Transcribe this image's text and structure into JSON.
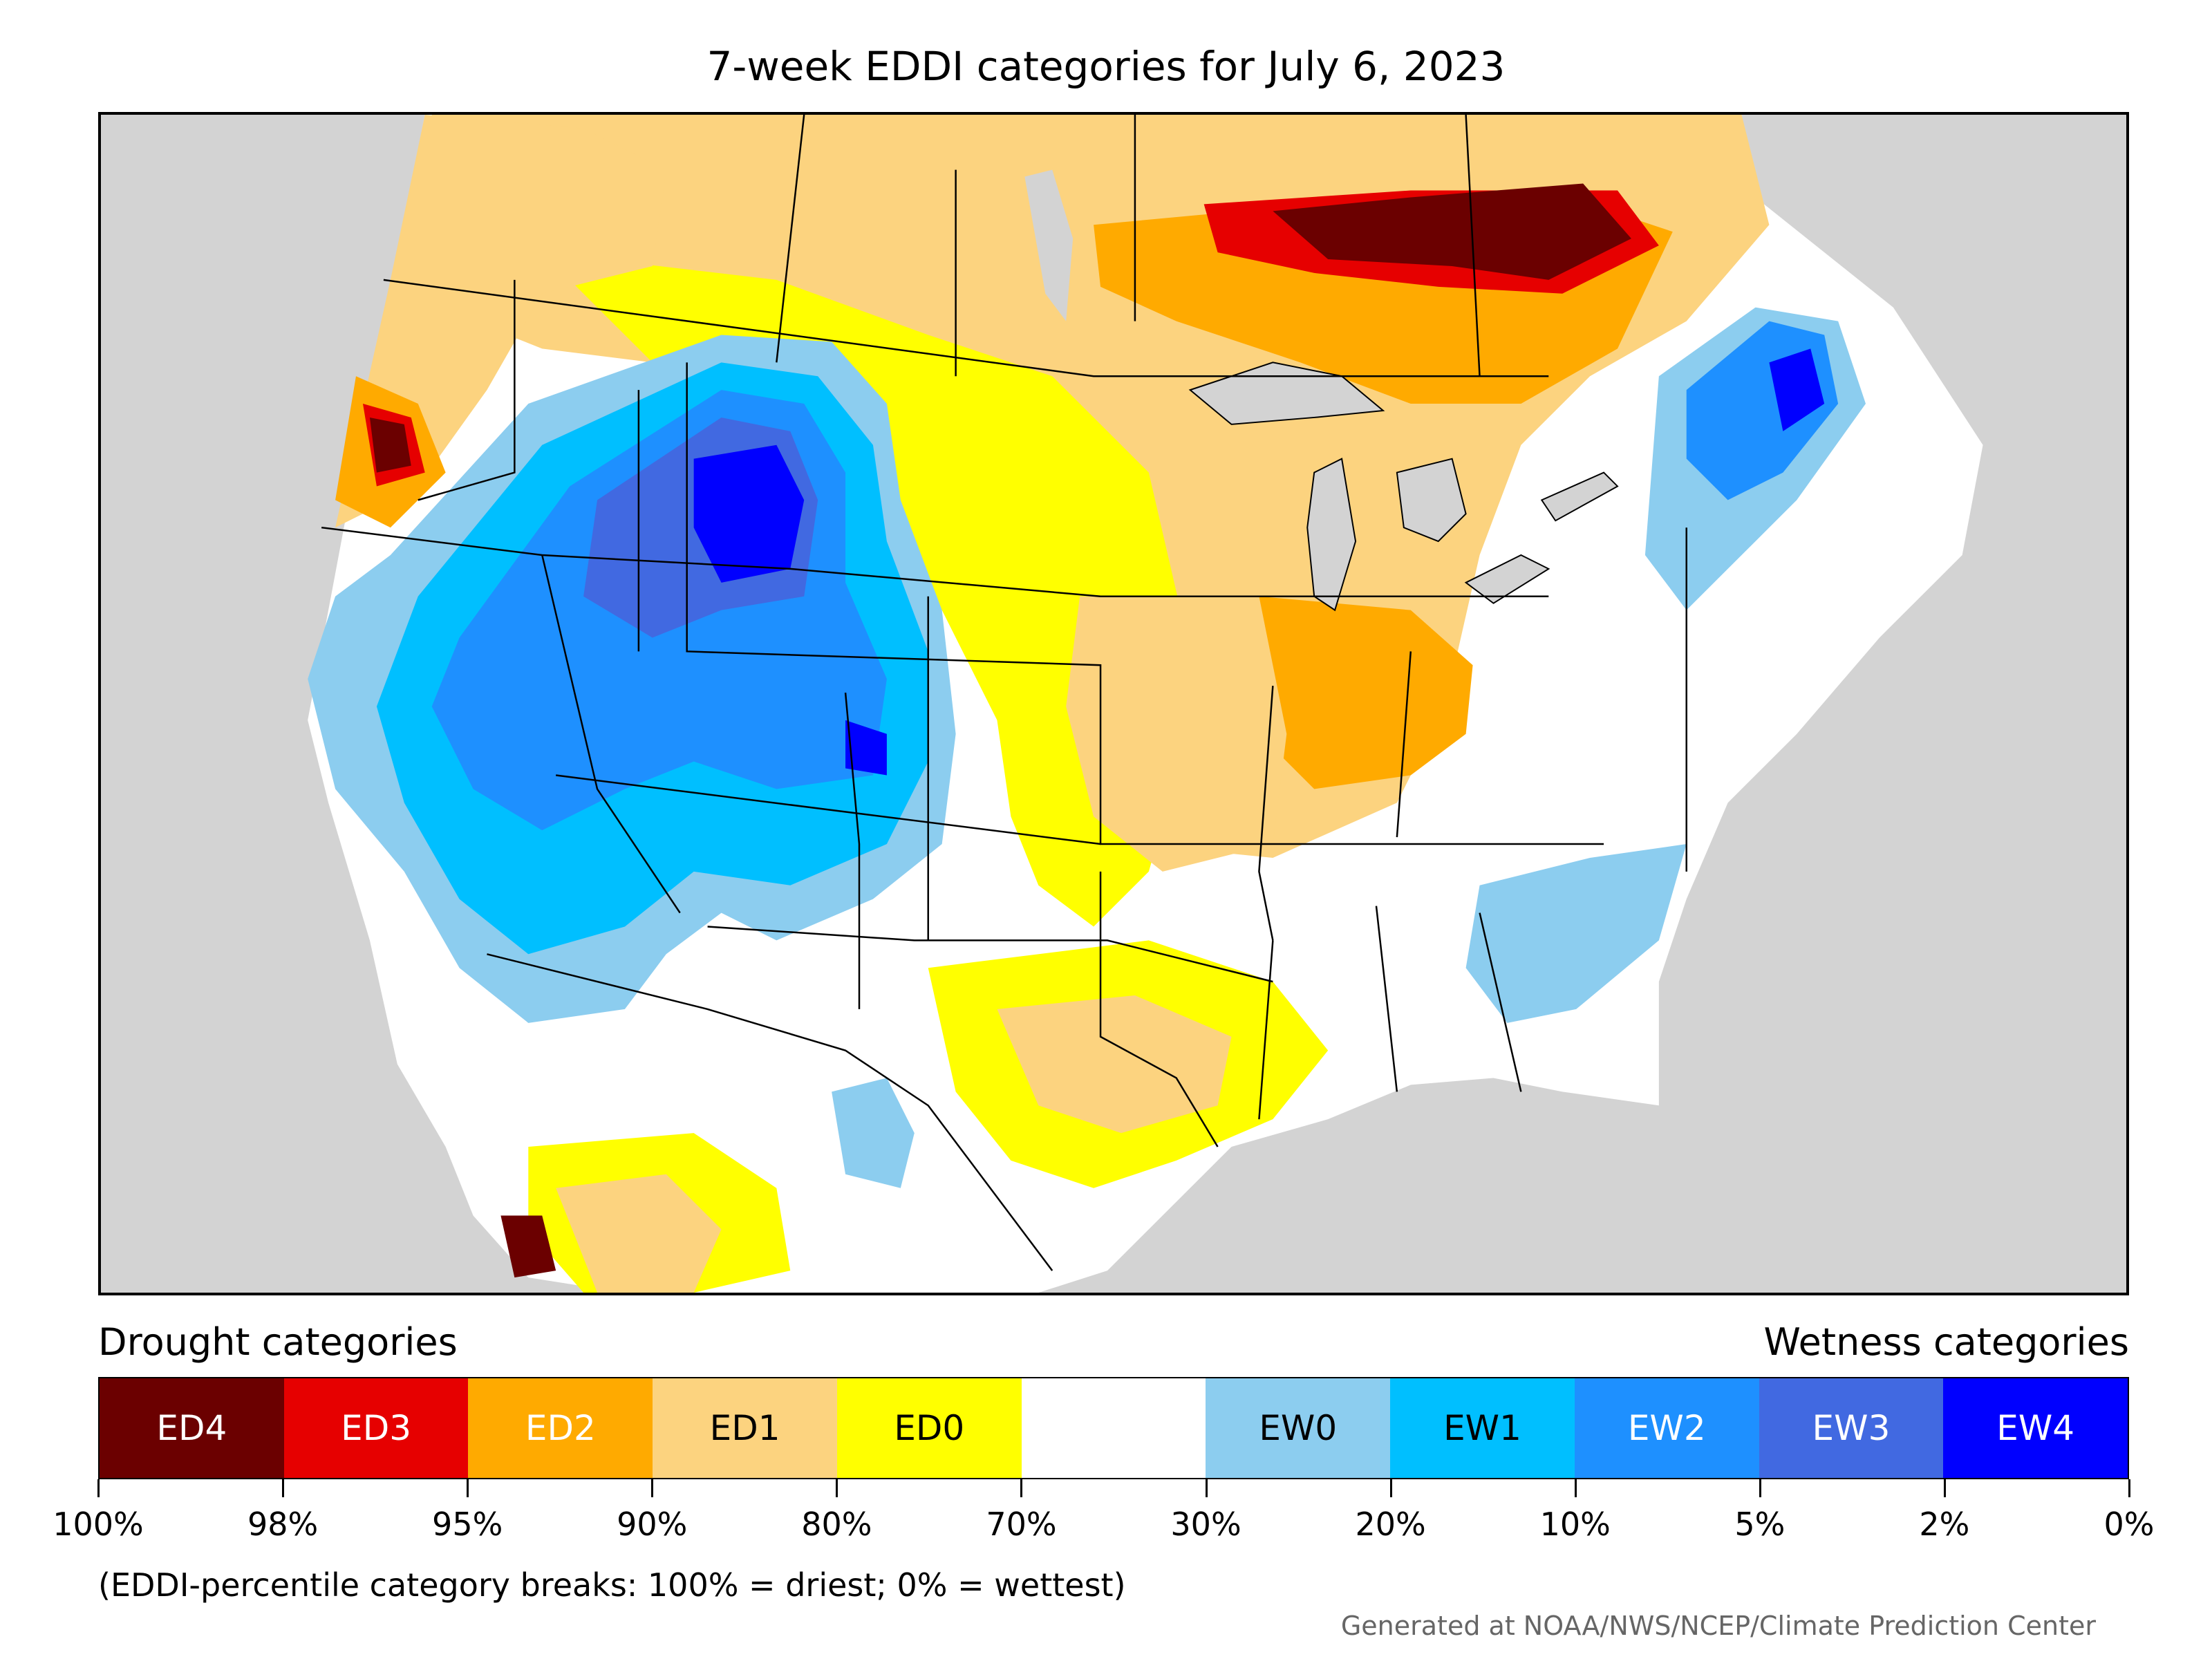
{
  "title": "7-week EDDI categories for July 6, 2023",
  "legend": {
    "drought_label": "Drought categories",
    "wetness_label": "Wetness categories",
    "categories": [
      {
        "label": "ED4",
        "color": "#6b0000",
        "text_color": "#ffffff"
      },
      {
        "label": "ED3",
        "color": "#e60000",
        "text_color": "#ffffff"
      },
      {
        "label": "ED2",
        "color": "#ffaa00",
        "text_color": "#ffffff"
      },
      {
        "label": "ED1",
        "color": "#fcd37f",
        "text_color": "#000000"
      },
      {
        "label": "ED0",
        "color": "#ffff00",
        "text_color": "#000000"
      },
      {
        "label": "",
        "color": "#ffffff",
        "text_color": "#000000"
      },
      {
        "label": "EW0",
        "color": "#8ccdef",
        "text_color": "#000000"
      },
      {
        "label": "EW1",
        "color": "#00bfff",
        "text_color": "#000000"
      },
      {
        "label": "EW2",
        "color": "#1e90ff",
        "text_color": "#ffffff"
      },
      {
        "label": "EW3",
        "color": "#4169e1",
        "text_color": "#ffffff"
      },
      {
        "label": "EW4",
        "color": "#0000ff",
        "text_color": "#ffffff"
      }
    ],
    "breaks": [
      "100%",
      "98%",
      "95%",
      "90%",
      "80%",
      "70%",
      "30%",
      "20%",
      "10%",
      "5%",
      "2%",
      "0%"
    ]
  },
  "note": "(EDDI-percentile category breaks: 100% = driest; 0% = wettest)",
  "credit": "Generated at NOAA/NWS/NCEP/Climate Prediction Center",
  "colors": {
    "background_land": "#d3d3d3",
    "ocean": "#d3d3d3",
    "lakes": "#d3d3d3"
  }
}
